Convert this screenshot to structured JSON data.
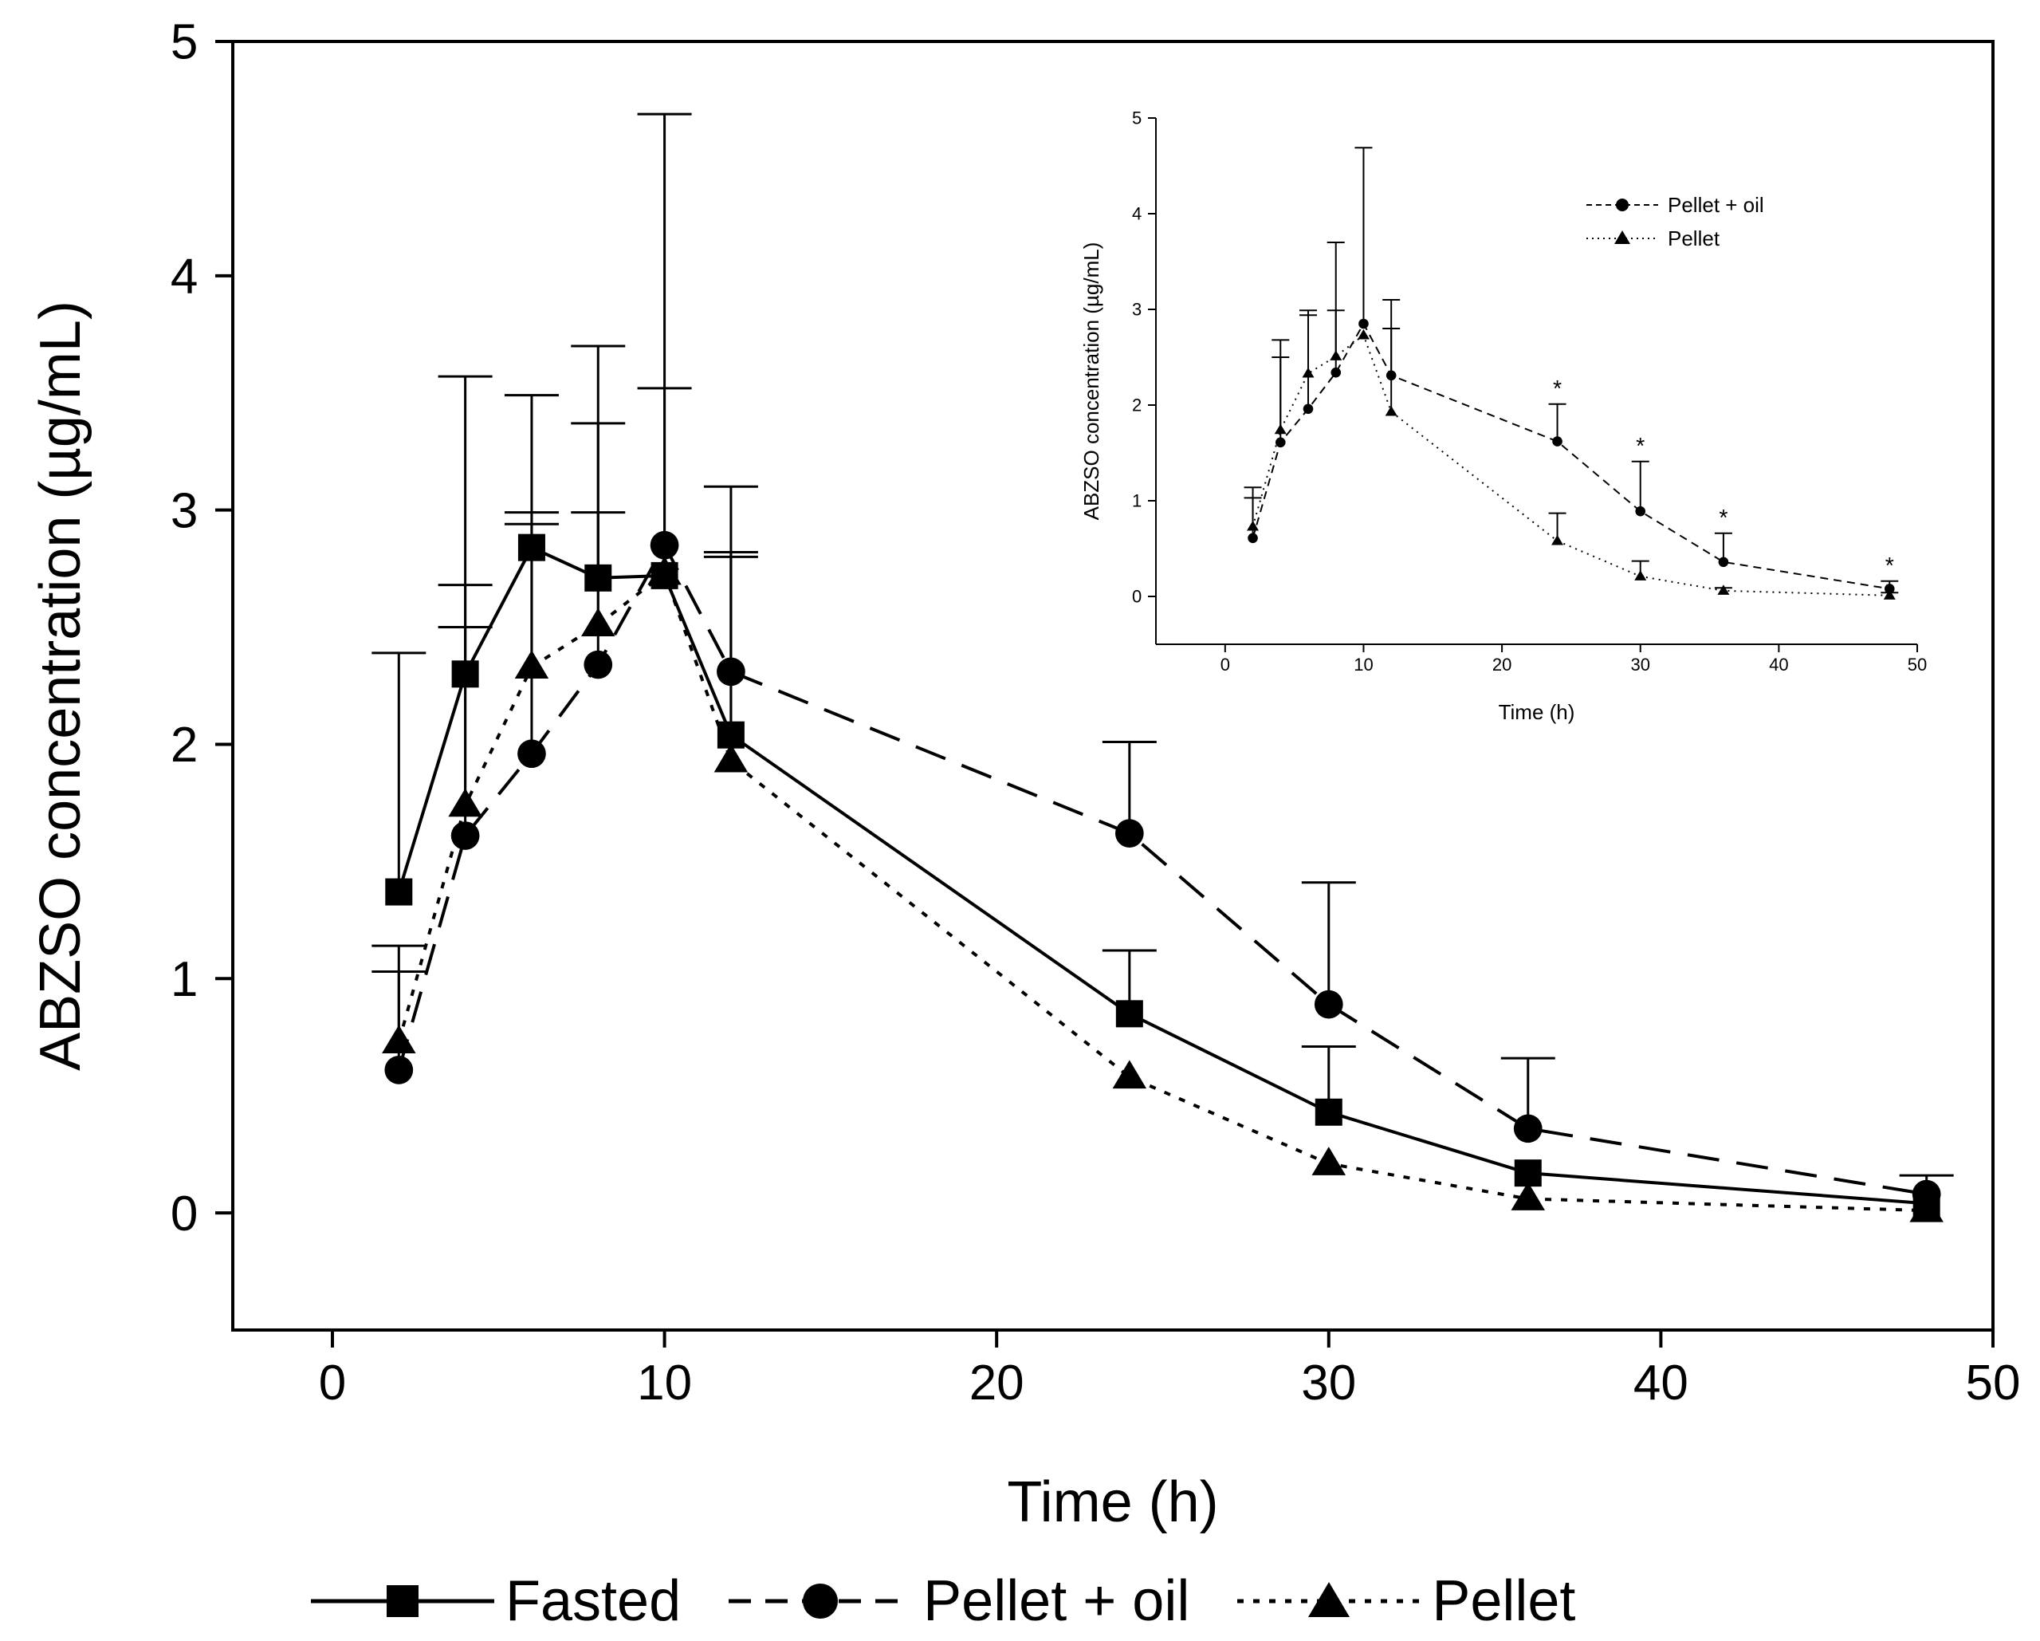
{
  "chart_data": [
    {
      "type": "line",
      "xlabel": "Time (h)",
      "ylabel": "ABZSO concentration (µg/mL)",
      "xlim": [
        -3,
        50
      ],
      "ylim": [
        -0.5,
        5
      ],
      "xticks": [
        0,
        10,
        20,
        30,
        40,
        50
      ],
      "yticks": [
        0,
        1,
        2,
        3,
        4,
        5
      ],
      "grid": false,
      "legend_position": "bottom",
      "x": [
        2,
        4,
        6,
        8,
        10,
        12,
        24,
        30,
        36,
        48
      ],
      "series": [
        {
          "name": "Fasted",
          "line_style": "solid",
          "marker": "square",
          "values": [
            1.37,
            2.3,
            2.84,
            2.71,
            2.72,
            2.04,
            0.85,
            0.43,
            0.17,
            0.04
          ],
          "error_upper": [
            2.39,
            3.57,
            3.49,
            3.37,
            3.52,
            2.82,
            1.12,
            0.71,
            0.17,
            0.04
          ]
        },
        {
          "name": "Pellet + oil",
          "line_style": "dashed",
          "marker": "circle",
          "values": [
            0.61,
            1.61,
            1.96,
            2.34,
            2.85,
            2.31,
            1.62,
            0.89,
            0.36,
            0.08
          ],
          "error_upper": [
            1.03,
            2.5,
            2.94,
            2.99,
            4.69,
            3.1,
            2.01,
            1.41,
            0.66,
            0.16
          ]
        },
        {
          "name": "Pellet",
          "line_style": "dotted",
          "marker": "triangle",
          "values": [
            0.73,
            1.74,
            2.33,
            2.51,
            2.73,
            1.93,
            0.58,
            0.21,
            0.06,
            0.01
          ],
          "error_upper": [
            1.14,
            2.68,
            2.99,
            3.7,
            2.73,
            2.8,
            0.58,
            0.21,
            0.06,
            0.01
          ]
        }
      ]
    },
    {
      "type": "line",
      "title": "",
      "xlabel": "Time (h)",
      "ylabel": "ABZSO concentration (µg/mL)",
      "xlim": [
        -5,
        50
      ],
      "ylim": [
        -0.5,
        5
      ],
      "xticks": [
        0,
        10,
        20,
        30,
        40,
        50
      ],
      "yticks": [
        0,
        1,
        2,
        3,
        4,
        5
      ],
      "legend_position": "top-right",
      "annotations": [
        "*",
        "*",
        "*",
        "*"
      ],
      "annotation_x": [
        24,
        30,
        36,
        48
      ],
      "x": [
        2,
        4,
        6,
        8,
        10,
        12,
        24,
        30,
        36,
        48
      ],
      "series": [
        {
          "name": "Pellet + oil",
          "line_style": "dashed",
          "marker": "circle",
          "values": [
            0.61,
            1.61,
            1.96,
            2.34,
            2.85,
            2.31,
            1.62,
            0.89,
            0.36,
            0.08
          ],
          "error_upper": [
            1.03,
            2.5,
            2.94,
            2.99,
            4.69,
            3.1,
            2.01,
            1.41,
            0.66,
            0.16
          ]
        },
        {
          "name": "Pellet",
          "line_style": "dotted",
          "marker": "triangle",
          "values": [
            0.73,
            1.74,
            2.33,
            2.51,
            2.73,
            1.93,
            0.58,
            0.21,
            0.06,
            0.01
          ],
          "error_upper": [
            1.14,
            2.68,
            2.99,
            3.7,
            2.73,
            2.8,
            0.87,
            0.37,
            0.09,
            0.04
          ]
        }
      ]
    }
  ]
}
